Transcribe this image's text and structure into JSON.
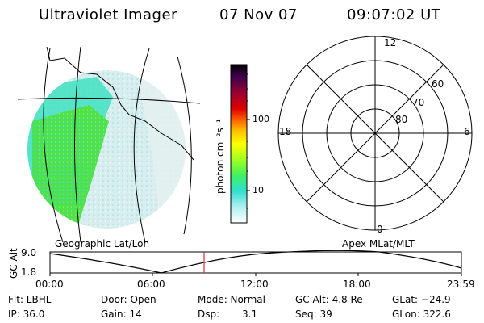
{
  "header": {
    "title": "Ultraviolet Imager",
    "date": "07 Nov 07",
    "time": "09:07:02 UT"
  },
  "colorbar": {
    "label": "photon cm⁻²s⁻¹",
    "ticks": [
      "100",
      "10"
    ],
    "colors": [
      "#000000",
      "#2a0040",
      "#6a0060",
      "#a00040",
      "#e00000",
      "#ff6000",
      "#ffb000",
      "#ffff00",
      "#c0ff00",
      "#60ff40",
      "#30e060",
      "#30e0c0",
      "#80f0f0",
      "#c0f0f0",
      "#ffffff"
    ]
  },
  "polar": {
    "mlt_labels": {
      "top": "12",
      "bottom": "0",
      "left": "18",
      "right": "6"
    },
    "lat_labels": [
      "60",
      "70",
      "80"
    ]
  },
  "map_labels": {
    "geographic": "Geographic Lat/Lon",
    "apex": "Apex MLat/MLT"
  },
  "timeline": {
    "ylabel": "GC Alt",
    "y_ticks": [
      "9.0",
      "1.8"
    ],
    "x_ticks": [
      "00:00",
      "06:00",
      "12:00",
      "18:00",
      "23:59"
    ]
  },
  "info": {
    "flt": "Flt: LBHL",
    "ip": "IP: 36.0",
    "door": "Door: Open",
    "gain": "Gain: 14",
    "mode": "Mode: Normal",
    "dsp_label": "Dsp:",
    "dsp_value": "3.1",
    "gcalt": "GC Alt: 4.8 Re",
    "seq": "Seq: 39",
    "glat": "GLat: −24.9",
    "glon": "GLon: 322.6"
  }
}
